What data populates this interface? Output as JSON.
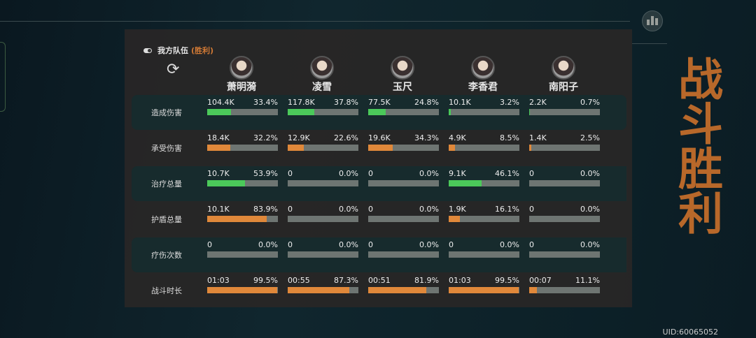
{
  "team": {
    "label": "我方队伍",
    "result": "(胜利)"
  },
  "victory_banner": "战斗胜利",
  "uid": "UID:60065052",
  "colors": {
    "green": "#4bc95a",
    "orange": "#e0883a",
    "track": "#6e7572",
    "accent": "#d27a35"
  },
  "heroes": [
    "萧明漪",
    "凌雪",
    "玉尺",
    "李香君",
    "南阳子"
  ],
  "rows": [
    {
      "label": "造成伤害",
      "color": "green",
      "cells": [
        {
          "v": "104.4K",
          "p": "33.4%",
          "f": 33.4
        },
        {
          "v": "117.8K",
          "p": "37.8%",
          "f": 37.8
        },
        {
          "v": "77.5K",
          "p": "24.8%",
          "f": 24.8
        },
        {
          "v": "10.1K",
          "p": "3.2%",
          "f": 3.2
        },
        {
          "v": "2.2K",
          "p": "0.7%",
          "f": 0.7
        }
      ]
    },
    {
      "label": "承受伤害",
      "color": "orange",
      "cells": [
        {
          "v": "18.4K",
          "p": "32.2%",
          "f": 32.2
        },
        {
          "v": "12.9K",
          "p": "22.6%",
          "f": 22.6
        },
        {
          "v": "19.6K",
          "p": "34.3%",
          "f": 34.3
        },
        {
          "v": "4.9K",
          "p": "8.5%",
          "f": 8.5
        },
        {
          "v": "1.4K",
          "p": "2.5%",
          "f": 2.5
        }
      ]
    },
    {
      "label": "治疗总量",
      "color": "green",
      "cells": [
        {
          "v": "10.7K",
          "p": "53.9%",
          "f": 53.9
        },
        {
          "v": "0",
          "p": "0.0%",
          "f": 0
        },
        {
          "v": "0",
          "p": "0.0%",
          "f": 0
        },
        {
          "v": "9.1K",
          "p": "46.1%",
          "f": 46.1
        },
        {
          "v": "0",
          "p": "0.0%",
          "f": 0
        }
      ]
    },
    {
      "label": "护盾总量",
      "color": "orange",
      "cells": [
        {
          "v": "10.1K",
          "p": "83.9%",
          "f": 83.9
        },
        {
          "v": "0",
          "p": "0.0%",
          "f": 0
        },
        {
          "v": "0",
          "p": "0.0%",
          "f": 0
        },
        {
          "v": "1.9K",
          "p": "16.1%",
          "f": 16.1
        },
        {
          "v": "0",
          "p": "0.0%",
          "f": 0
        }
      ]
    },
    {
      "label": "疗伤次数",
      "color": "green",
      "cells": [
        {
          "v": "0",
          "p": "0.0%",
          "f": 0
        },
        {
          "v": "0",
          "p": "0.0%",
          "f": 0
        },
        {
          "v": "0",
          "p": "0.0%",
          "f": 0
        },
        {
          "v": "0",
          "p": "0.0%",
          "f": 0
        },
        {
          "v": "0",
          "p": "0.0%",
          "f": 0
        }
      ]
    },
    {
      "label": "战斗时长",
      "color": "orange",
      "cells": [
        {
          "v": "01:03",
          "p": "99.5%",
          "f": 99.5
        },
        {
          "v": "00:55",
          "p": "87.3%",
          "f": 87.3
        },
        {
          "v": "00:51",
          "p": "81.9%",
          "f": 81.9
        },
        {
          "v": "01:03",
          "p": "99.5%",
          "f": 99.5
        },
        {
          "v": "00:07",
          "p": "11.1%",
          "f": 11.1
        }
      ]
    }
  ]
}
